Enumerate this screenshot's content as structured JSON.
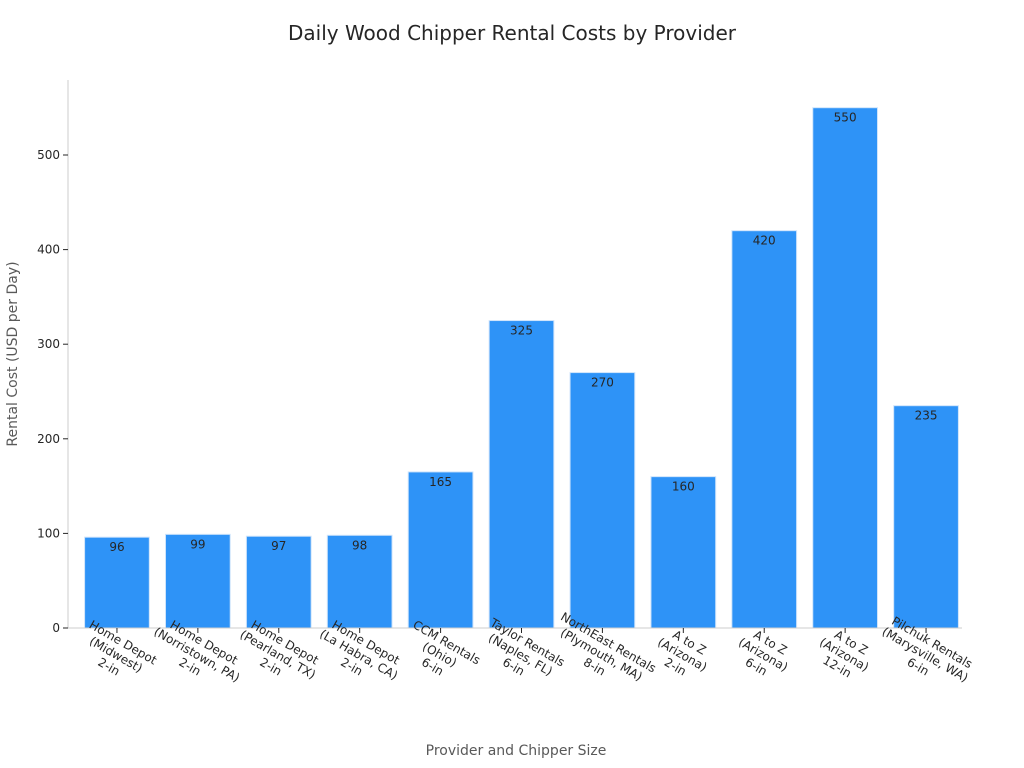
{
  "chart_data": {
    "type": "bar",
    "title": "Daily Wood Chipper Rental Costs by Provider",
    "xlabel": "Provider and Chipper Size",
    "ylabel": "Rental Cost (USD per Day)",
    "ylim": [
      0,
      560
    ],
    "yticks": [
      0,
      100,
      200,
      300,
      400,
      500
    ],
    "bar_color": "#2E93F7",
    "categories": [
      [
        "Home Depot",
        "(Midwest)",
        "2-in"
      ],
      [
        "Home Depot",
        "(Norristown, PA)",
        "2-in"
      ],
      [
        "Home Depot",
        "(Pearland, TX)",
        "2-in"
      ],
      [
        "Home Depot",
        "(La Habra, CA)",
        "2-in"
      ],
      [
        "CCM Rentals",
        "(Ohio)",
        "6-in"
      ],
      [
        "Taylor Rentals",
        "(Naples, FL)",
        "6-in"
      ],
      [
        "NorthEast Rentals",
        "(Plymouth, MA)",
        "8-in"
      ],
      [
        "A to Z",
        "(Arizona)",
        "2-in"
      ],
      [
        "A to Z",
        "(Arizona)",
        "6-in"
      ],
      [
        "A to Z",
        "(Arizona)",
        "12-in"
      ],
      [
        "Pilchuk Rentals",
        "(Marysville, WA)",
        "6-in"
      ]
    ],
    "values": [
      96,
      99,
      97,
      98,
      165,
      325,
      270,
      160,
      420,
      550,
      235
    ]
  }
}
